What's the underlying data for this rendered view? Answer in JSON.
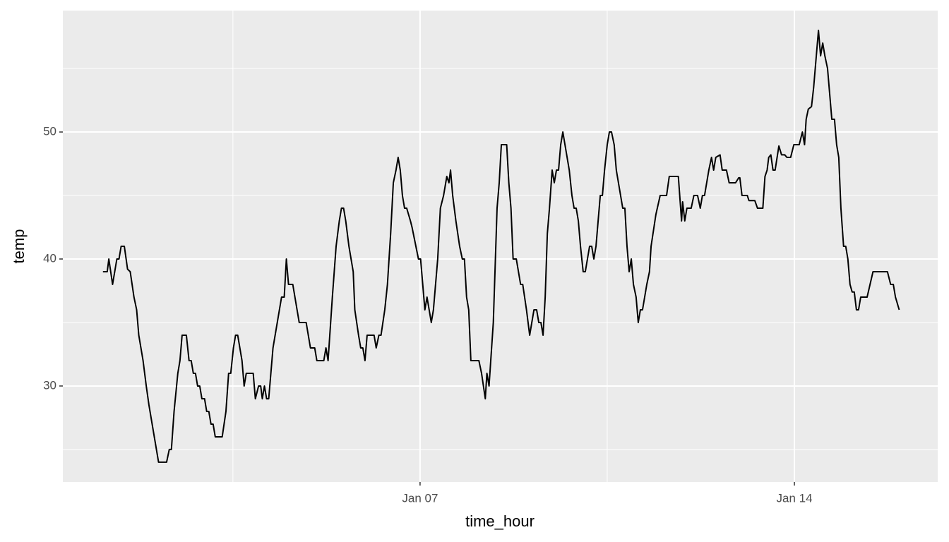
{
  "chart_data": {
    "type": "line",
    "x_label": "time_hour",
    "y_label": "temp",
    "x": [
      1.07,
      1.15,
      1.18,
      1.25,
      1.33,
      1.37,
      1.41,
      1.47,
      1.53,
      1.58,
      1.65,
      1.7,
      1.74,
      1.82,
      1.88,
      1.93,
      1.99,
      2.05,
      2.11,
      2.26,
      2.31,
      2.35,
      2.4,
      2.47,
      2.51,
      2.55,
      2.63,
      2.68,
      2.72,
      2.76,
      2.8,
      2.84,
      2.88,
      2.92,
      2.97,
      3.01,
      3.05,
      3.09,
      3.13,
      3.17,
      3.3,
      3.37,
      3.42,
      3.46,
      3.51,
      3.55,
      3.59,
      3.67,
      3.71,
      3.75,
      3.88,
      3.92,
      3.98,
      4.02,
      4.05,
      4.09,
      4.13,
      4.17,
      4.25,
      4.33,
      4.41,
      4.46,
      4.5,
      4.54,
      4.62,
      4.7,
      4.74,
      4.87,
      4.95,
      5.03,
      5.07,
      5.2,
      5.24,
      5.28,
      5.36,
      5.43,
      5.49,
      5.53,
      5.57,
      5.61,
      5.67,
      5.75,
      5.78,
      5.85,
      5.89,
      5.93,
      5.97,
      6.01,
      6.14,
      6.18,
      6.23,
      6.27,
      6.34,
      6.39,
      6.45,
      6.5,
      6.55,
      6.59,
      6.63,
      6.67,
      6.71,
      6.75,
      6.82,
      6.85,
      6.97,
      7.01,
      7.05,
      7.09,
      7.13,
      7.21,
      7.25,
      7.33,
      7.38,
      7.44,
      7.5,
      7.54,
      7.57,
      7.61,
      7.67,
      7.74,
      7.79,
      7.83,
      7.87,
      7.91,
      7.95,
      8.1,
      8.15,
      8.22,
      8.25,
      8.29,
      8.37,
      8.44,
      8.48,
      8.52,
      8.62,
      8.66,
      8.7,
      8.74,
      8.8,
      8.88,
      8.92,
      8.99,
      9.05,
      9.09,
      9.13,
      9.18,
      9.22,
      9.26,
      9.3,
      9.34,
      9.38,
      9.42,
      9.47,
      9.51,
      9.55,
      9.59,
      9.63,
      9.67,
      9.79,
      9.84,
      9.88,
      9.92,
      9.96,
      10.0,
      10.05,
      10.09,
      10.13,
      10.17,
      10.21,
      10.25,
      10.29,
      10.33,
      10.37,
      10.41,
      10.45,
      10.5,
      10.54,
      10.58,
      10.63,
      10.67,
      10.75,
      10.79,
      10.83,
      10.87,
      10.91,
      10.95,
      10.99,
      11.04,
      11.08,
      11.12,
      11.16,
      11.24,
      11.29,
      11.32,
      11.41,
      11.49,
      11.61,
      11.66,
      11.83,
      11.89,
      11.91,
      11.95,
      11.99,
      12.07,
      12.12,
      12.19,
      12.24,
      12.28,
      12.32,
      12.4,
      12.45,
      12.49,
      12.53,
      12.61,
      12.65,
      12.73,
      12.78,
      12.9,
      12.96,
      12.98,
      13.02,
      13.12,
      13.15,
      13.26,
      13.31,
      13.41,
      13.45,
      13.49,
      13.52,
      13.56,
      13.6,
      13.64,
      13.71,
      13.76,
      13.82,
      13.86,
      13.93,
      13.99,
      14.09,
      14.15,
      14.19,
      14.22,
      14.26,
      14.32,
      14.36,
      14.41,
      14.45,
      14.49,
      14.53,
      14.57,
      14.62,
      14.7,
      14.75,
      14.79,
      14.83,
      14.87,
      14.92,
      14.96,
      15.0,
      15.04,
      15.08,
      15.12,
      15.16,
      15.2,
      15.24,
      15.36,
      15.47,
      15.74,
      15.8,
      15.85,
      15.89,
      15.96
    ],
    "values": [
      39,
      39,
      40,
      38,
      40,
      40,
      41,
      41,
      39.2,
      39,
      37,
      36,
      34,
      32,
      30,
      28.5,
      27,
      25.5,
      24,
      24,
      25,
      25,
      28,
      31,
      32,
      34,
      34,
      32,
      32,
      31,
      31,
      30,
      30,
      29,
      29,
      28,
      28,
      27,
      27,
      26,
      26,
      28,
      31,
      31,
      33,
      34,
      34,
      32,
      30,
      31,
      31,
      29,
      30,
      30,
      29,
      30,
      29,
      29,
      33,
      35,
      37,
      37,
      40,
      38,
      38,
      36,
      35,
      35,
      33,
      33,
      32,
      32,
      33,
      32,
      37,
      41,
      43,
      44,
      44,
      43,
      41,
      39,
      36,
      34,
      33,
      33,
      32,
      34,
      34,
      33,
      34,
      34,
      36,
      38,
      42,
      46,
      47,
      48,
      47,
      45,
      44,
      44,
      43,
      42.5,
      40,
      40,
      38,
      36,
      37,
      35,
      36,
      40,
      44,
      45,
      46.5,
      46,
      47,
      45,
      43,
      41,
      40,
      40,
      37,
      36,
      32,
      32,
      31,
      29,
      31,
      30,
      35,
      44,
      46,
      49,
      49,
      46,
      44,
      40,
      40,
      38,
      38,
      36,
      34,
      35,
      36,
      36,
      35,
      35,
      34,
      37,
      42,
      44,
      47,
      46,
      47,
      47,
      49,
      50,
      47,
      45,
      44,
      44,
      43,
      41,
      39,
      39,
      40,
      41,
      41,
      40,
      41,
      43,
      45,
      45,
      47,
      49,
      50,
      50,
      49,
      47,
      45,
      44,
      44,
      41,
      39,
      40,
      38,
      37,
      35,
      36,
      36,
      38,
      39,
      41,
      43.5,
      45,
      45,
      46.5,
      46.5,
      43,
      44.5,
      43,
      44,
      44,
      45,
      45,
      44,
      45,
      45,
      47,
      48,
      47,
      48,
      48.2,
      47,
      47,
      46,
      46,
      46.4,
      46.4,
      45,
      45,
      44.6,
      44.6,
      44,
      44,
      46.5,
      47,
      48,
      48.2,
      47,
      47,
      48.9,
      48.2,
      48.2,
      48,
      48,
      49,
      49,
      50,
      49,
      51,
      51.8,
      52,
      53.5,
      56,
      58,
      56,
      57,
      56,
      55,
      51,
      51,
      49,
      48,
      44,
      41,
      41,
      40,
      38,
      37.4,
      37.4,
      36,
      36,
      37,
      37,
      39,
      39,
      38,
      38,
      37,
      36
    ],
    "color": "#000000",
    "xlim": [
      0.32,
      16.68
    ],
    "ylim": [
      22.44,
      59.56
    ],
    "xticks": [
      {
        "value": 7,
        "label": "Jan 07"
      },
      {
        "value": 14,
        "label": "Jan 14"
      }
    ],
    "yticks": [
      30,
      40,
      50
    ],
    "x_minor_ticks": [
      3.5,
      10.5
    ],
    "y_minor_ticks": [
      25,
      35,
      45,
      55
    ],
    "grid": true
  }
}
